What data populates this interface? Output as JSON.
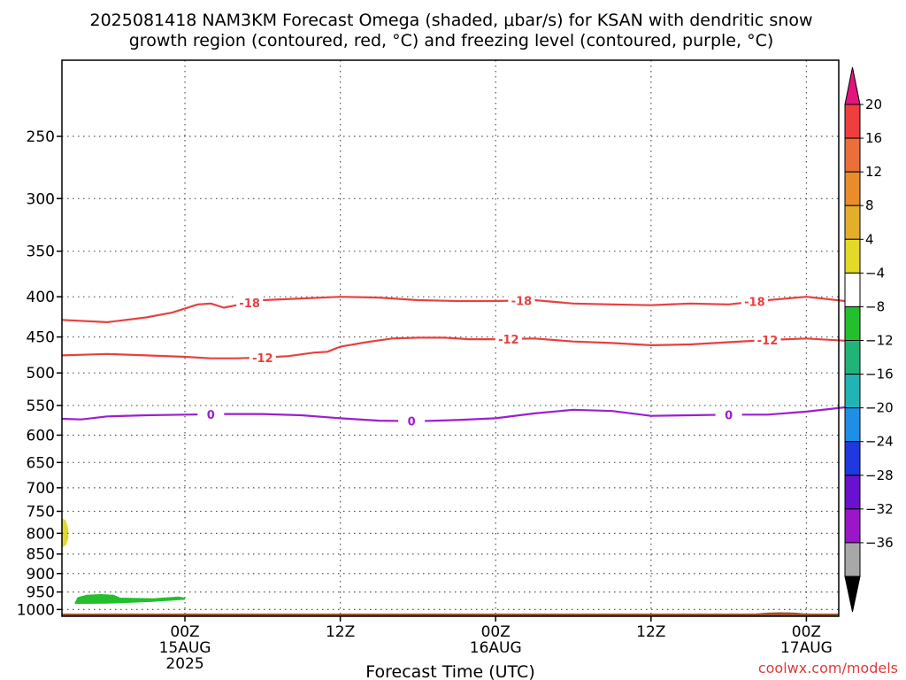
{
  "title_line1": "2025081418 NAM3KM Forecast Omega (shaded, μbar/s) for KSAN with dendritic snow",
  "title_line2": "growth region (contoured, red, °C) and freezing level (contoured, purple, °C)",
  "credit": "coolwx.com/models",
  "chart_data": {
    "type": "time-height cross section",
    "title": "2025081418 NAM3KM Forecast Omega (shaded, μbar/s) for KSAN with dendritic snow growth region (contoured, red, °C) and freezing level (contoured, purple, °C)",
    "xlabel": "Forecast Time (UTC)",
    "ylabel": "",
    "x_range_hours": [
      -9.5,
      50.5
    ],
    "y_range_hpa": [
      1020,
      200
    ],
    "y_scale": "log-pressure (inverted)",
    "grid": true,
    "x_ticks": [
      {
        "hour": 0,
        "label": "00Z",
        "sub1": "15AUG",
        "sub2": "2025"
      },
      {
        "hour": 12,
        "label": "12Z",
        "sub1": "",
        "sub2": ""
      },
      {
        "hour": 24,
        "label": "00Z",
        "sub1": "16AUG",
        "sub2": ""
      },
      {
        "hour": 36,
        "label": "12Z",
        "sub1": "",
        "sub2": ""
      },
      {
        "hour": 48,
        "label": "00Z",
        "sub1": "17AUG",
        "sub2": ""
      }
    ],
    "y_ticks": [
      250,
      300,
      350,
      400,
      450,
      500,
      550,
      600,
      650,
      700,
      750,
      800,
      850,
      900,
      950,
      1000
    ],
    "contours": [
      {
        "level": -18,
        "label": "-18",
        "color": "#e84040",
        "x": [
          -9.5,
          -6,
          -3,
          -1,
          1,
          2,
          3,
          6,
          9,
          12,
          15,
          18,
          21,
          24,
          27,
          30,
          33,
          36,
          39,
          42,
          45,
          48,
          51
        ],
        "y": [
          428,
          431,
          425,
          419,
          409,
          408,
          413,
          404,
          402,
          400,
          401,
          404,
          405,
          405,
          404,
          408,
          409,
          410,
          408,
          409,
          404,
          400,
          405
        ],
        "label_hours": [
          5,
          26,
          44
        ]
      },
      {
        "level": -12,
        "label": "-12",
        "color": "#e84040",
        "x": [
          -9.5,
          -6,
          -3,
          0,
          2,
          4,
          6,
          8,
          10,
          11,
          12,
          14,
          16,
          18,
          20,
          22,
          24,
          27,
          30,
          33,
          36,
          39,
          42,
          45,
          48,
          51
        ],
        "y": [
          475,
          473,
          475,
          477,
          479,
          479,
          478,
          476,
          471,
          470,
          463,
          457,
          452,
          451,
          451,
          453,
          453,
          452,
          456,
          458,
          461,
          460,
          457,
          454,
          452,
          455
        ],
        "label_hours": [
          6,
          25,
          45
        ]
      },
      {
        "level": 0,
        "label": "0",
        "color": "#9b1fd1",
        "x": [
          -9.5,
          -8,
          -6,
          -3,
          0,
          3,
          6,
          9,
          12,
          15,
          18,
          21,
          24,
          27,
          30,
          33,
          36,
          39,
          42,
          45,
          48,
          51
        ],
        "y": [
          572,
          573,
          568,
          566,
          565,
          564,
          564,
          566,
          571,
          575,
          576,
          574,
          571,
          563,
          557,
          559,
          567,
          566,
          565,
          565,
          560,
          553
        ],
        "label_hours": [
          2,
          17.5,
          42
        ]
      }
    ],
    "shaded_regions": [
      {
        "name": "omega-positive-blob",
        "color": "#e2d630",
        "range": "4 to 8"
      },
      {
        "name": "omega-negative-blob",
        "color": "#22c02c",
        "range": "-8 to -4"
      }
    ],
    "terrain_color": "#a0522d",
    "colorbar": {
      "ticks": [
        "20",
        "16",
        "12",
        "8",
        "4",
        "−4",
        "−8",
        "−12",
        "−16",
        "−20",
        "−24",
        "−28",
        "−32",
        "−36"
      ],
      "colors": [
        "#ee3e3e",
        "#ec6e3a",
        "#e98c2a",
        "#e3ae2c",
        "#e4d928",
        "#ffffff",
        "#22c02c",
        "#20b478",
        "#22b4b4",
        "#1e8ee6",
        "#2038e0",
        "#6a10cf",
        "#9a16c8",
        "#a8a8a8"
      ],
      "top_triangle_color": "#e3147c",
      "bottom_triangle_color": "#000000"
    }
  }
}
